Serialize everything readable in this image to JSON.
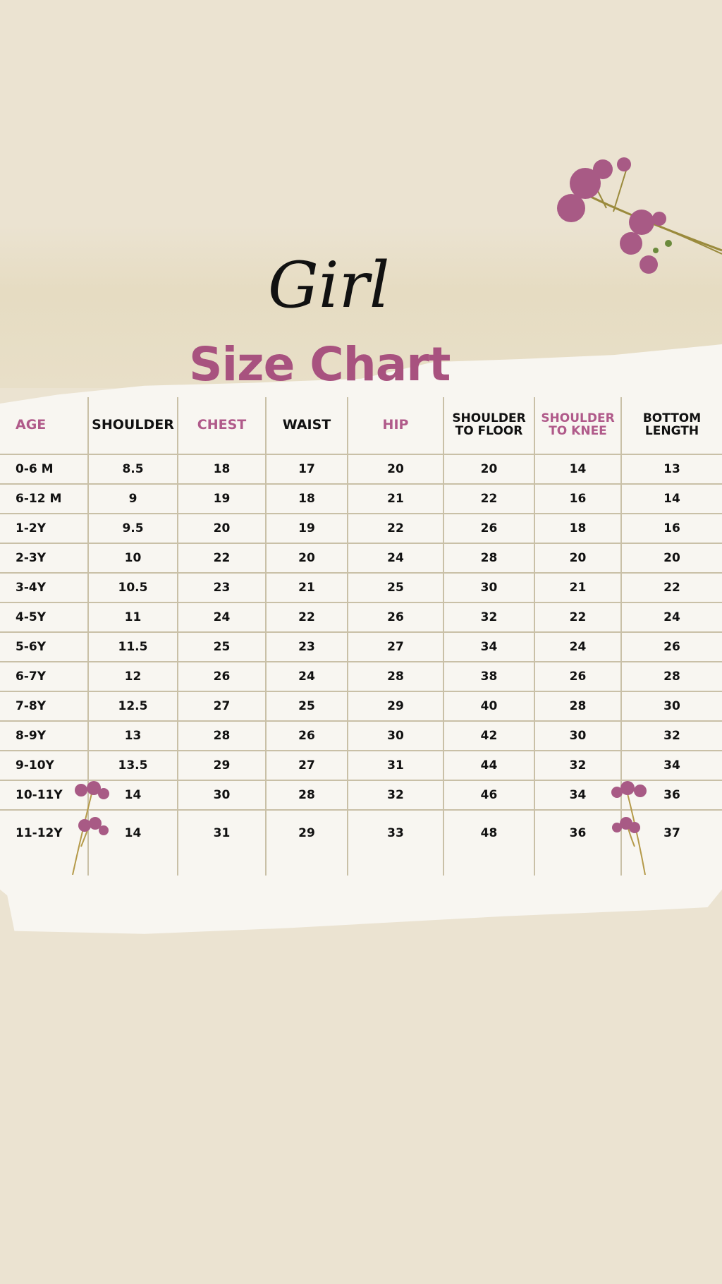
{
  "title_script": "Girl",
  "title": "Size Chart",
  "colors": {
    "background": "#ebe3d1",
    "accent": "#a8527f",
    "grid": "#c9c0a7"
  },
  "decorations": [
    "flower-sprig-top-right",
    "flower-sprig-left",
    "flower-sprig-right"
  ],
  "table": {
    "headers": [
      "AGE",
      "SHOULDER",
      "CHEST",
      "WAIST",
      "HIP",
      "SHOULDER TO FLOOR",
      "SHOULDER TO KNEE",
      "BOTTOM LENGTH"
    ],
    "rows": [
      [
        "0-6 M",
        "8.5",
        "18",
        "17",
        "20",
        "20",
        "14",
        "13"
      ],
      [
        "6-12 M",
        "9",
        "19",
        "18",
        "21",
        "22",
        "16",
        "14"
      ],
      [
        "1-2Y",
        "9.5",
        "20",
        "19",
        "22",
        "26",
        "18",
        "16"
      ],
      [
        "2-3Y",
        "10",
        "22",
        "20",
        "24",
        "28",
        "20",
        "20"
      ],
      [
        "3-4Y",
        "10.5",
        "23",
        "21",
        "25",
        "30",
        "21",
        "22"
      ],
      [
        "4-5Y",
        "11",
        "24",
        "22",
        "26",
        "32",
        "22",
        "24"
      ],
      [
        "5-6Y",
        "11.5",
        "25",
        "23",
        "27",
        "34",
        "24",
        "26"
      ],
      [
        "6-7Y",
        "12",
        "26",
        "24",
        "28",
        "38",
        "26",
        "28"
      ],
      [
        "7-8Y",
        "12.5",
        "27",
        "25",
        "29",
        "40",
        "28",
        "30"
      ],
      [
        "8-9Y",
        "13",
        "28",
        "26",
        "30",
        "42",
        "30",
        "32"
      ],
      [
        "9-10Y",
        "13.5",
        "29",
        "27",
        "31",
        "44",
        "32",
        "34"
      ],
      [
        "10-11Y",
        "14",
        "30",
        "28",
        "32",
        "46",
        "34",
        "36"
      ],
      [
        "11-12Y",
        "14",
        "31",
        "29",
        "33",
        "48",
        "36",
        "37"
      ]
    ]
  }
}
